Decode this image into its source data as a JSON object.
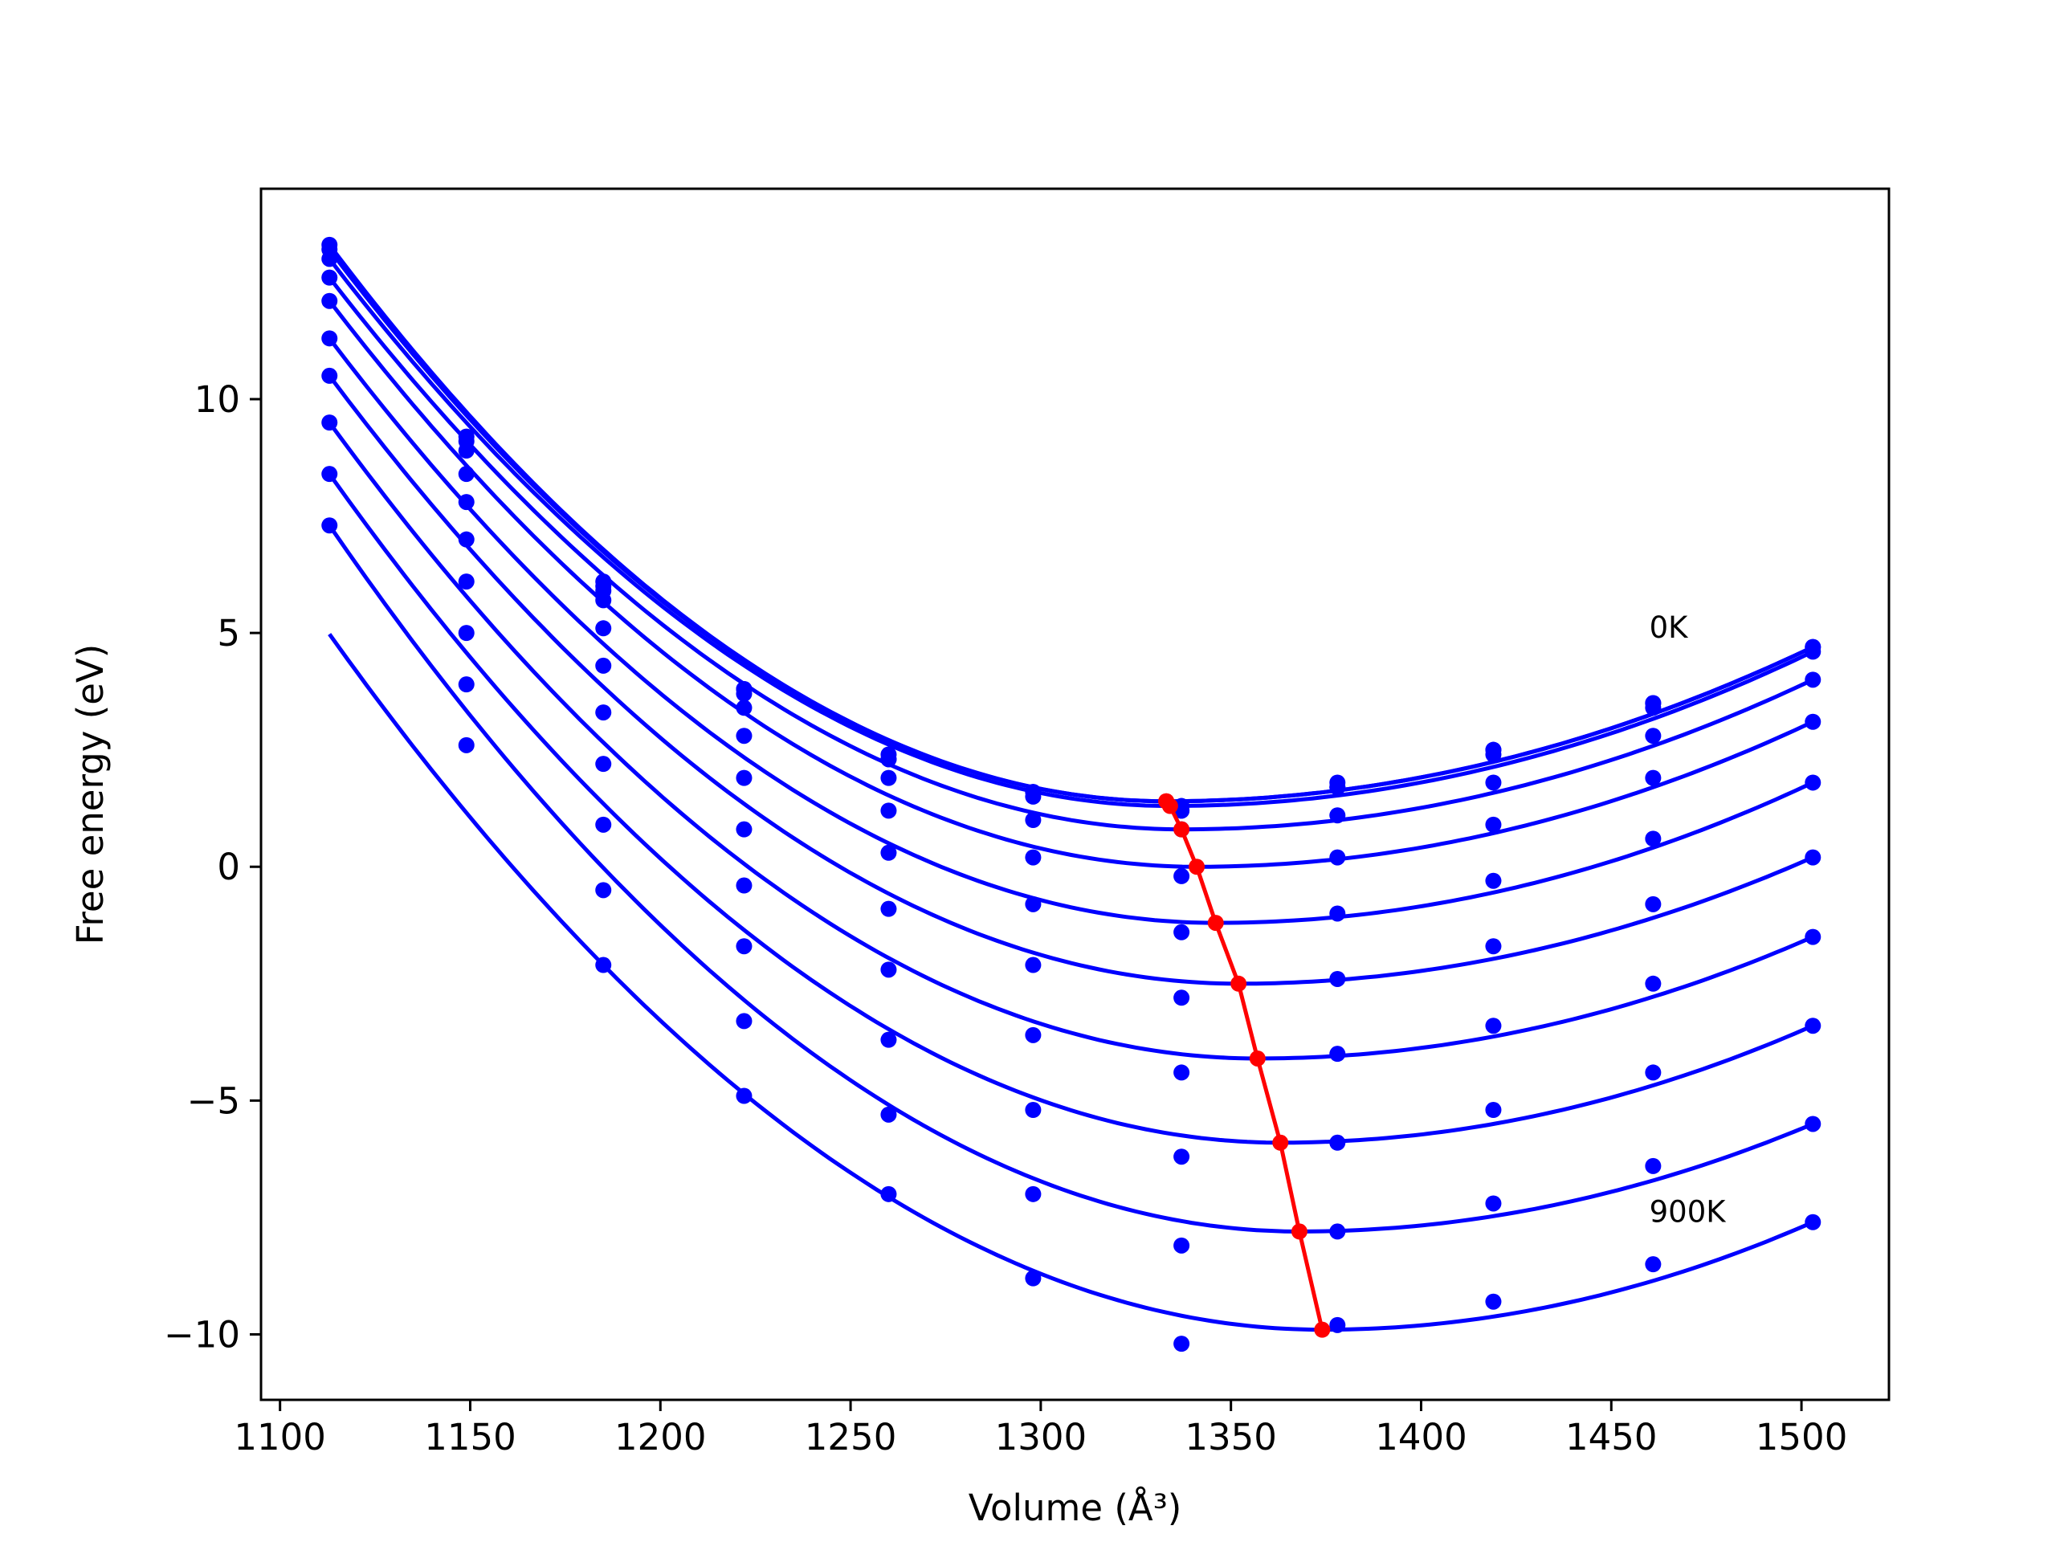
{
  "chart_data": {
    "type": "line",
    "xlabel": "Volume (Å³)",
    "ylabel": "Free energy (eV)",
    "xlim": [
      1095,
      1523
    ],
    "ylim": [
      -11.4,
      14.5
    ],
    "xticks": [
      1100,
      1150,
      1200,
      1250,
      1300,
      1350,
      1400,
      1450,
      1500
    ],
    "yticks": [
      10,
      5,
      0,
      -5,
      -10
    ],
    "xtick_labels": [
      "1100",
      "1150",
      "1200",
      "1250",
      "1300",
      "1350",
      "1400",
      "1450",
      "1500"
    ],
    "ytick_labels": [
      "10",
      "5",
      "0",
      "−5",
      "−10"
    ],
    "grid": false,
    "legend": "none",
    "annotations": [
      {
        "text": "0K",
        "x": 1460,
        "y": 4.9
      },
      {
        "text": "900K",
        "x": 1460,
        "y": -7.6
      }
    ],
    "colors": {
      "curves": "#0000ff",
      "points": "#0000ff",
      "minima_line": "#ff0000"
    },
    "x": [
      1113,
      1149,
      1185,
      1222,
      1260,
      1298,
      1337,
      1378,
      1419,
      1461,
      1503
    ],
    "series": [
      {
        "values": [
          13.3,
          9.2,
          6.1,
          3.8,
          2.4,
          1.6,
          1.3,
          1.8,
          2.5,
          3.5,
          4.7
        ],
        "fit_min": [
          1333,
          1.4
        ]
      },
      {
        "values": [
          13.2,
          9.1,
          6.0,
          3.8,
          2.3,
          1.6,
          1.2,
          1.7,
          2.5,
          3.5,
          4.7
        ],
        "fit_min": [
          1333,
          1.4
        ]
      },
      {
        "values": [
          13.0,
          8.9,
          5.9,
          3.7,
          2.3,
          1.5,
          1.2,
          1.7,
          2.4,
          3.4,
          4.6
        ],
        "fit_min": [
          1334,
          1.3
        ]
      },
      {
        "values": [
          12.6,
          8.4,
          5.7,
          3.4,
          1.9,
          1.0,
          0.8,
          1.1,
          1.8,
          2.8,
          4.0
        ],
        "fit_min": [
          1337,
          0.8
        ]
      },
      {
        "values": [
          12.1,
          7.8,
          5.1,
          2.8,
          1.2,
          0.2,
          -0.2,
          0.2,
          0.9,
          1.9,
          3.1
        ],
        "fit_min": [
          1341,
          0.0
        ]
      },
      {
        "values": [
          11.3,
          7.0,
          4.3,
          1.9,
          0.3,
          -0.8,
          -1.4,
          -1.0,
          -0.3,
          0.6,
          1.8
        ],
        "fit_min": [
          1346,
          -1.2
        ]
      },
      {
        "values": [
          10.5,
          6.1,
          3.3,
          0.8,
          -0.9,
          -2.1,
          -2.8,
          -2.4,
          -1.7,
          -0.8,
          0.2
        ],
        "fit_min": [
          1352,
          -2.5
        ]
      },
      {
        "values": [
          9.5,
          5.0,
          2.2,
          -0.4,
          -2.2,
          -3.6,
          -4.4,
          -4.0,
          -3.4,
          -2.5,
          -1.5
        ],
        "fit_min": [
          1357,
          -4.1
        ]
      },
      {
        "values": [
          8.4,
          3.9,
          0.9,
          -1.7,
          -3.7,
          -5.2,
          -6.2,
          -5.9,
          -5.2,
          -4.4,
          -3.4
        ],
        "fit_min": [
          1363,
          -5.9
        ]
      },
      {
        "values": [
          7.3,
          2.6,
          -0.5,
          -3.3,
          -5.3,
          -7.0,
          -8.1,
          -7.8,
          -7.2,
          -6.4,
          -5.5
        ],
        "fit_min": [
          1368,
          -7.8
        ]
      },
      {
        "values": [
          null,
          null,
          -2.1,
          -4.9,
          -7.0,
          -8.8,
          -10.2,
          -9.8,
          -9.3,
          -8.5,
          -7.6
        ],
        "fit_min": [
          1374,
          -9.9
        ]
      }
    ],
    "minima_line": {
      "x": [
        1333,
        1333,
        1334,
        1337,
        1341,
        1346,
        1352,
        1357,
        1363,
        1368,
        1374
      ],
      "y": [
        1.4,
        1.4,
        1.3,
        0.8,
        0.0,
        -1.2,
        -2.5,
        -4.1,
        -5.9,
        -7.8,
        -9.9
      ]
    }
  }
}
